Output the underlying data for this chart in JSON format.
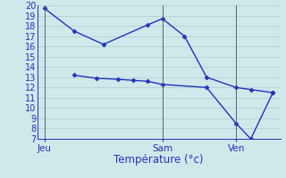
{
  "background_color": "#cfe8ea",
  "grid_color": "#b8d4d6",
  "line_color": "#2233bb",
  "x_tick_labels": [
    "Jeu",
    "Sam",
    "Ven"
  ],
  "x_tick_positions": [
    0,
    8,
    13
  ],
  "x_vline_positions": [
    0,
    8,
    13
  ],
  "ylabel": "Température (°c)",
  "ylim": [
    7,
    20
  ],
  "yticks": [
    7,
    8,
    9,
    10,
    11,
    12,
    13,
    14,
    15,
    16,
    17,
    18,
    19,
    20
  ],
  "xlim": [
    -0.5,
    16
  ],
  "line1_x": [
    0,
    2,
    4,
    7,
    8,
    9.5,
    11,
    13,
    14,
    15.5
  ],
  "line1_y": [
    19.7,
    17.5,
    16.2,
    18.1,
    18.7,
    17.0,
    13.0,
    12.0,
    11.8,
    11.5
  ],
  "line2_x": [
    2,
    3.5,
    5,
    6,
    7,
    8,
    11,
    13,
    14,
    15.5
  ],
  "line2_y": [
    13.2,
    12.9,
    12.8,
    12.7,
    12.6,
    12.3,
    12.0,
    8.5,
    7.0,
    11.5
  ]
}
